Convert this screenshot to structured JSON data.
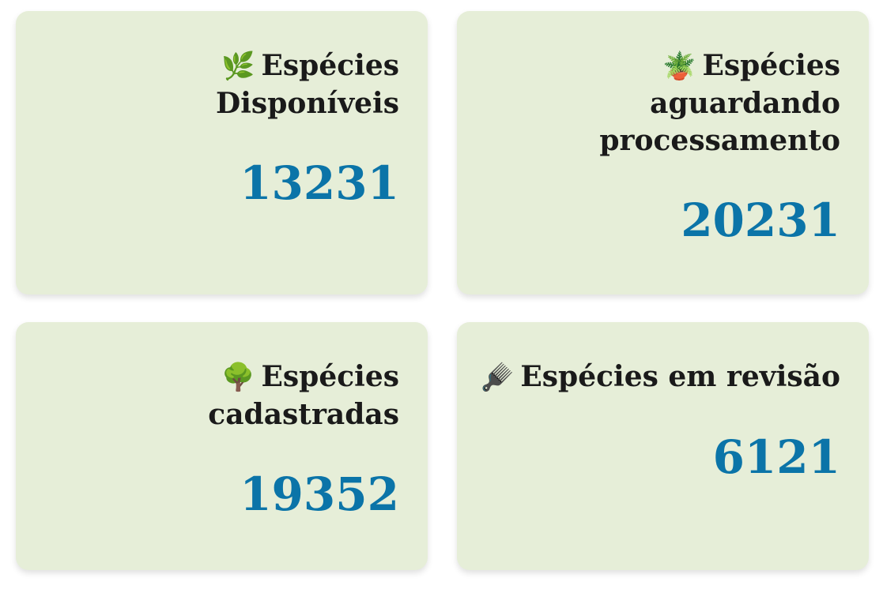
{
  "accent_color": "#0b74a8",
  "card_background": "#e6eed8",
  "cards": [
    {
      "icon": "🌿",
      "icon_name": "herb-icon",
      "title": "Espécies Disponíveis",
      "value": "13231"
    },
    {
      "icon": "🪴",
      "icon_name": "potted-plant-icon",
      "title": "Espécies aguardando processamento",
      "value": "20231"
    },
    {
      "icon": "🌳",
      "icon_name": "tree-icon",
      "title": "Espécies cadastradas",
      "value": "19352"
    },
    {
      "icon": "🪮",
      "icon_name": "hair-pick-icon",
      "title": "Espécies em revisão",
      "value": "6121"
    }
  ]
}
